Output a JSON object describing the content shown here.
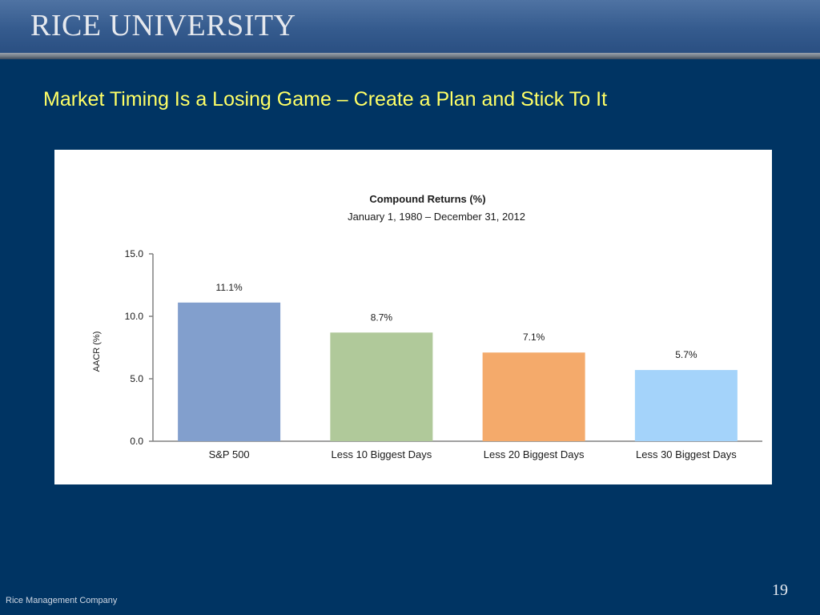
{
  "header": {
    "logo_text": "RICE UNIVERSITY"
  },
  "slide": {
    "title": "Market Timing Is a Losing Game – Create a Plan and Stick To It",
    "footer": "Rice Management Company",
    "page_number": "19"
  },
  "chart_data": {
    "type": "bar",
    "title": "Compound Returns (%)",
    "subtitle": "January 1, 1980 – December 31, 2012",
    "ylabel": "AACR (%)",
    "xlabel": "",
    "ylim": [
      0,
      15
    ],
    "yticks": [
      "0.0",
      "5.0",
      "10.0",
      "15.0"
    ],
    "grid": false,
    "categories": [
      "S&P 500",
      "Less 10 Biggest Days",
      "Less 20 Biggest Days",
      "Less 30 Biggest Days"
    ],
    "values": [
      11.1,
      8.7,
      7.1,
      5.7
    ],
    "data_labels": [
      "11.1%",
      "8.7%",
      "7.1%",
      "5.7%"
    ],
    "colors": [
      "#829fcd",
      "#b0c99a",
      "#f4aa6b",
      "#a4d3fa"
    ]
  }
}
